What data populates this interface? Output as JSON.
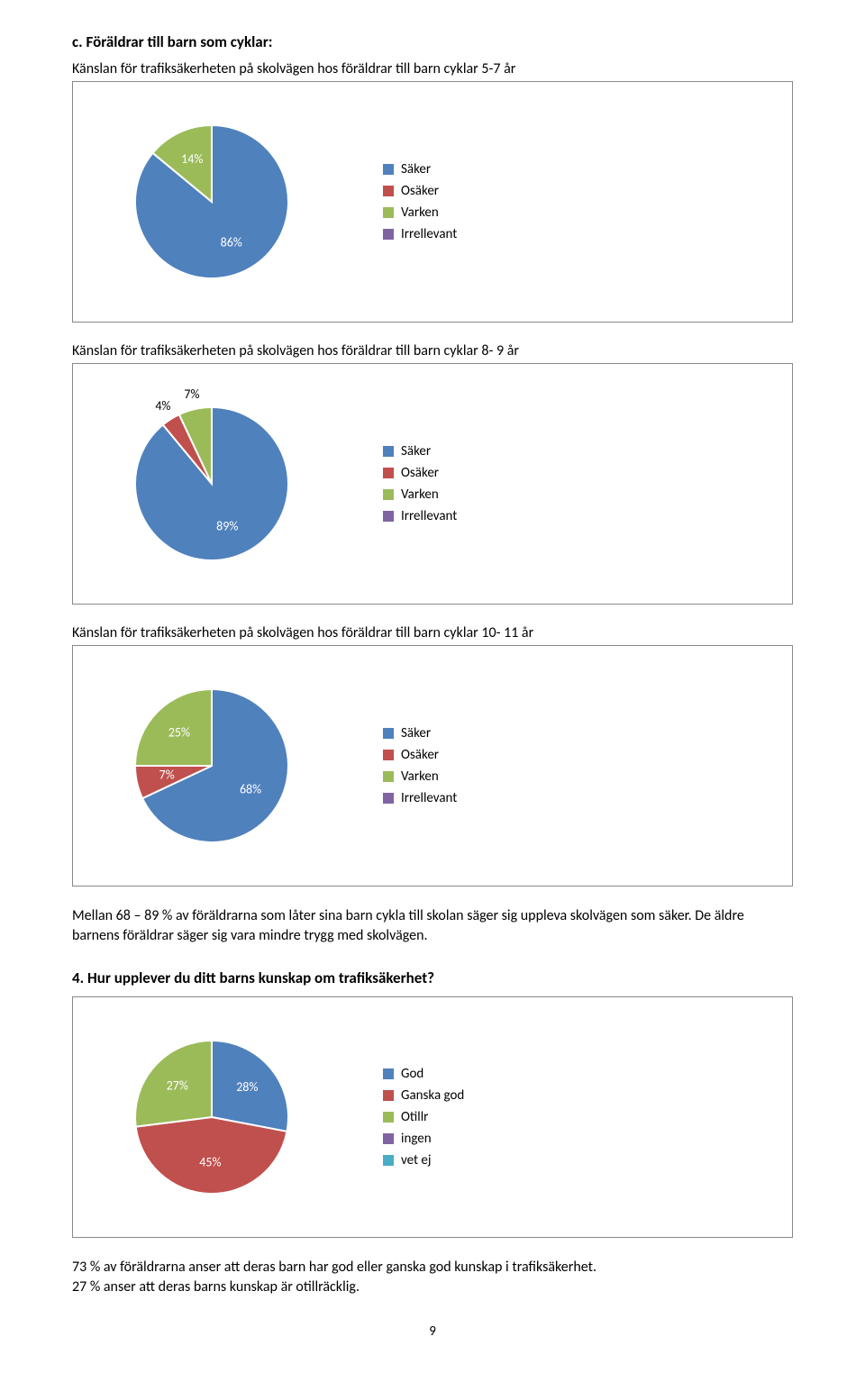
{
  "colors": {
    "blue": "#4f81bd",
    "red": "#c0504d",
    "green": "#9bbb59",
    "purple": "#8064a2",
    "cyan": "#4bacc6",
    "slice_border": "#ffffff",
    "box_border": "#888888",
    "bg": "#ffffff",
    "text": "#000000"
  },
  "typography": {
    "body_font": "Calibri, Segoe UI, Arial, sans-serif",
    "heading_size_pt": 12.5,
    "title_size_pt": 12,
    "body_size_pt": 12,
    "label_size_pt": 10.5
  },
  "heading_c": "c. Föräldrar till barn som cyklar:",
  "chart1": {
    "type": "pie",
    "title": "Känslan för trafiksäkerheten på skolvägen hos föräldrar till barn cyklar 5-7 år",
    "series": [
      {
        "label": "Säker",
        "value": 86,
        "color": "#4f81bd",
        "show_label": true,
        "label_text": "86%"
      },
      {
        "label": "Osäker",
        "value": 0,
        "color": "#c0504d",
        "show_label": false,
        "label_text": ""
      },
      {
        "label": "Varken",
        "value": 14,
        "color": "#9bbb59",
        "show_label": true,
        "label_text": "14%"
      },
      {
        "label": "Irrellevant",
        "value": 0,
        "color": "#8064a2",
        "show_label": false,
        "label_text": ""
      }
    ],
    "legend": [
      "Säker",
      "Osäker",
      "Varken",
      "Irrellevant"
    ],
    "radius": 85,
    "start_angle_deg": -90
  },
  "chart2": {
    "type": "pie",
    "title": "Känslan för trafiksäkerheten på skolvägen hos föräldrar till barn cyklar 8- 9 år",
    "series": [
      {
        "label": "Säker",
        "value": 89,
        "color": "#4f81bd",
        "show_label": true,
        "label_text": "89%"
      },
      {
        "label": "Osäker",
        "value": 4,
        "color": "#c0504d",
        "show_label": true,
        "label_text": "4%",
        "label_outside": true
      },
      {
        "label": "Varken",
        "value": 7,
        "color": "#9bbb59",
        "show_label": true,
        "label_text": "7%",
        "label_outside": true
      },
      {
        "label": "Irrellevant",
        "value": 0,
        "color": "#8064a2",
        "show_label": false,
        "label_text": ""
      }
    ],
    "legend": [
      "Säker",
      "Osäker",
      "Varken",
      "Irrellevant"
    ],
    "radius": 85,
    "start_angle_deg": -90
  },
  "chart3": {
    "type": "pie",
    "title": "Känslan för trafiksäkerheten på skolvägen hos föräldrar till barn cyklar 10- 11 år",
    "series": [
      {
        "label": "Säker",
        "value": 68,
        "color": "#4f81bd",
        "show_label": true,
        "label_text": "68%"
      },
      {
        "label": "Osäker",
        "value": 7,
        "color": "#c0504d",
        "show_label": true,
        "label_text": "7%"
      },
      {
        "label": "Varken",
        "value": 25,
        "color": "#9bbb59",
        "show_label": true,
        "label_text": "25%"
      },
      {
        "label": "Irrellevant",
        "value": 0,
        "color": "#8064a2",
        "show_label": false,
        "label_text": ""
      }
    ],
    "legend": [
      "Säker",
      "Osäker",
      "Varken",
      "Irrellevant"
    ],
    "radius": 85,
    "start_angle_deg": -90
  },
  "para1": "Mellan 68 – 89 % av föräldrarna som låter sina barn cykla till skolan säger sig uppleva skolvägen som säker. De äldre barnens föräldrar säger sig vara mindre trygg med skolvägen.",
  "heading4": "4. Hur upplever du ditt barns kunskap om trafiksäkerhet?",
  "chart4": {
    "type": "pie",
    "title": "",
    "series": [
      {
        "label": "God",
        "value": 28,
        "color": "#4f81bd",
        "show_label": true,
        "label_text": "28%"
      },
      {
        "label": "Ganska god",
        "value": 45,
        "color": "#c0504d",
        "show_label": true,
        "label_text": "45%"
      },
      {
        "label": "Otillr",
        "value": 27,
        "color": "#9bbb59",
        "show_label": true,
        "label_text": "27%"
      },
      {
        "label": "ingen",
        "value": 0,
        "color": "#8064a2",
        "show_label": false,
        "label_text": ""
      },
      {
        "label": "vet ej",
        "value": 0,
        "color": "#4bacc6",
        "show_label": false,
        "label_text": ""
      }
    ],
    "legend": [
      "God",
      "Ganska god",
      "Otillr",
      "ingen",
      "vet ej"
    ],
    "radius": 85,
    "start_angle_deg": -90
  },
  "para2a": "73 % av föräldrarna anser att deras barn har god eller ganska god kunskap i trafiksäkerhet.",
  "para2b": "27 % anser att deras barns kunskap är otillräcklig.",
  "page_num": "9"
}
